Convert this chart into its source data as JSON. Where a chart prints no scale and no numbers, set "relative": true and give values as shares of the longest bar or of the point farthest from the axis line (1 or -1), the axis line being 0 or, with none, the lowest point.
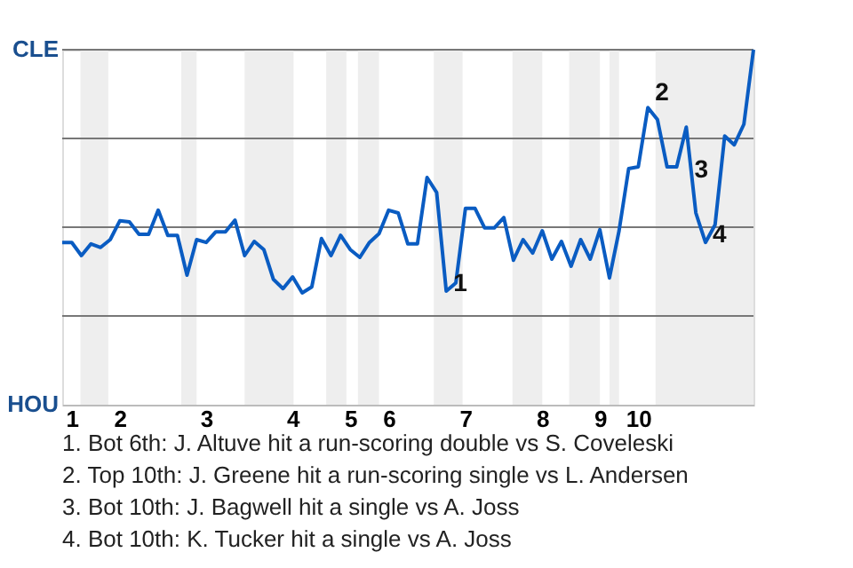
{
  "chart_data": {
    "type": "line",
    "relative": true,
    "categories": [
      null,
      "1",
      null,
      null,
      null,
      null,
      "2",
      null,
      null,
      null,
      null,
      null,
      null,
      null,
      null,
      "3",
      null,
      null,
      null,
      null,
      null,
      null,
      null,
      null,
      "4",
      null,
      null,
      null,
      null,
      null,
      "5",
      null,
      null,
      null,
      "6",
      null,
      null,
      null,
      null,
      null,
      null,
      null,
      "7",
      null,
      null,
      null,
      null,
      null,
      null,
      null,
      "8",
      null,
      null,
      null,
      null,
      null,
      "9",
      null,
      null,
      null,
      "10",
      null,
      null,
      null,
      null,
      null,
      null,
      null,
      null,
      null,
      null,
      null,
      null
    ],
    "series": [
      {
        "color": "#0a5cc2",
        "values": [
          0.457,
          0.457,
          0.42,
          0.453,
          0.443,
          0.465,
          0.518,
          0.515,
          0.48,
          0.48,
          0.548,
          0.477,
          0.477,
          0.365,
          0.465,
          0.457,
          0.487,
          0.487,
          0.52,
          0.42,
          0.46,
          0.437,
          0.353,
          0.327,
          0.36,
          0.315,
          0.332,
          0.468,
          0.42,
          0.477,
          0.437,
          0.415,
          0.457,
          0.482,
          0.548,
          0.54,
          0.453,
          0.453,
          0.64,
          0.598,
          0.32,
          0.343,
          0.553,
          0.553,
          0.498,
          0.498,
          0.527,
          0.407,
          0.465,
          0.427,
          0.49,
          0.41,
          0.46,
          0.39,
          0.465,
          0.41,
          0.493,
          0.357,
          0.49,
          0.665,
          0.67,
          0.837,
          0.803,
          0.67,
          0.67,
          0.782,
          0.54,
          0.457,
          0.507,
          0.757,
          0.732,
          0.79,
          1
        ]
      }
    ],
    "marker": "none",
    "line_style": "solid",
    "ref_lines": [
      {
        "axis": "y",
        "value": 0.25,
        "color": "#777777"
      },
      {
        "axis": "y",
        "value": 0.5,
        "color": "#777777"
      },
      {
        "axis": "y",
        "value": 0.75,
        "color": "#777777"
      },
      {
        "axis": "y",
        "value": 1,
        "color": "#777777"
      }
    ],
    "annotations": [
      "CLE",
      "HOU",
      "1",
      "2",
      "3",
      "4",
      "1. Bot 6th: J. Altuve hit a run-scoring double vs S. Coveleski",
      "2. Top 10th: J. Greene hit a run-scoring single vs L. Andersen",
      "3. Bot 10th: J. Bagwell hit a single vs A. Joss",
      "4. Bot 10th: K. Tucker hit a single vs A. Joss"
    ]
  }
}
